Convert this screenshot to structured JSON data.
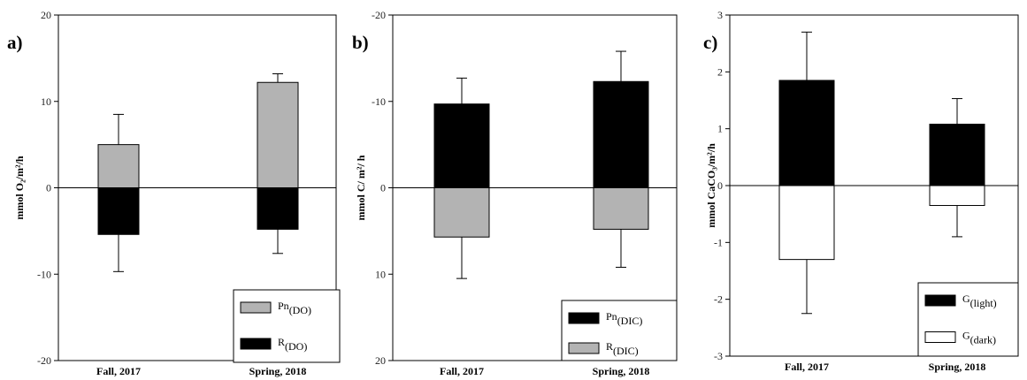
{
  "chart_data": [
    {
      "type": "bar",
      "panel": "a)",
      "ylabel": "mmol O₂/m²/h",
      "categories": [
        "Fall, 2017",
        "Spring, 2018"
      ],
      "ylim": [
        -20,
        20
      ],
      "yticks": [
        20,
        10,
        0,
        -10,
        -20
      ],
      "inverted_axis": false,
      "series": [
        {
          "name": "Pn",
          "sub": "(DO)",
          "values": [
            5.0,
            12.2
          ],
          "err": [
            3.5,
            1.0
          ],
          "color": "#b3b3b3"
        },
        {
          "name": "R",
          "sub": "(DO)",
          "values": [
            -5.4,
            -4.8
          ],
          "err": [
            4.3,
            2.8
          ],
          "color": "#000000"
        }
      ],
      "legend_position": "bottom-right"
    },
    {
      "type": "bar",
      "panel": "b)",
      "ylabel": "mmol C/ m²/ h",
      "categories": [
        "Fall, 2017",
        "Spring, 2018"
      ],
      "ylim": [
        -20,
        20
      ],
      "yticks": [
        -20,
        -10,
        0,
        10,
        20
      ],
      "inverted_axis": true,
      "series": [
        {
          "name": "Pn",
          "sub": "(DIC)",
          "values": [
            -9.7,
            -12.3
          ],
          "err": [
            3.0,
            3.5
          ],
          "color": "#000000"
        },
        {
          "name": "R",
          "sub": "(DIC)",
          "values": [
            5.7,
            4.8
          ],
          "err": [
            4.8,
            4.4
          ],
          "color": "#b3b3b3"
        }
      ],
      "legend_position": "bottom-right"
    },
    {
      "type": "bar",
      "panel": "c)",
      "ylabel": "mmol CaCO₃/m²/h",
      "categories": [
        "Fall, 2017",
        "Spring, 2018"
      ],
      "ylim": [
        -3,
        3
      ],
      "yticks": [
        3,
        2,
        1,
        0,
        -1,
        -2,
        -3
      ],
      "inverted_axis": false,
      "series": [
        {
          "name": "G",
          "sub": "(light)",
          "values": [
            1.85,
            1.08
          ],
          "err": [
            0.85,
            0.45
          ],
          "color": "#000000"
        },
        {
          "name": "G",
          "sub": "(dark)",
          "values": [
            -1.3,
            -0.35
          ],
          "err": [
            0.95,
            0.55
          ],
          "color": "#ffffff"
        }
      ],
      "legend_position": "bottom-right"
    }
  ]
}
